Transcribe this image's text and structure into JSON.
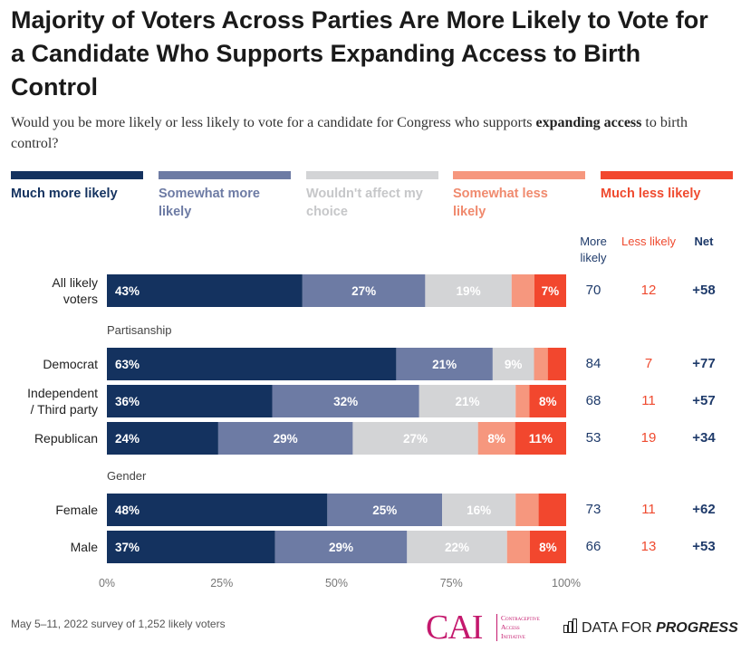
{
  "header": {
    "title": "Majority of Voters Across Parties Are More Likely to Vote for a Candidate Who Supports Expanding Access to Birth Control",
    "subtitle_pre": "Would you be more likely or less likely to vote for a candidate for Congress who supports ",
    "subtitle_bold": "expanding access",
    "subtitle_post": " to birth control?"
  },
  "colors": {
    "much_more": "#14325f",
    "somewhat_more": "#6d7ba4",
    "no_effect": "#d3d4d6",
    "somewhat_less": "#f6977e",
    "much_less": "#f2472e",
    "navy_text": "#1e3a6a",
    "red_text": "#ef4a2f"
  },
  "legend": [
    {
      "label": "Much more likely",
      "color": "#14325f",
      "text_color": "#14325f"
    },
    {
      "label": "Somewhat more likely",
      "color": "#6d7ba4",
      "text_color": "#6d7ba4"
    },
    {
      "label": "Wouldn't affect my choice",
      "color": "#d3d4d6",
      "text_color": "#c6c7c9"
    },
    {
      "label": "Somewhat less likely",
      "color": "#f6977e",
      "text_color": "#f08a6e"
    },
    {
      "label": "Much less likely",
      "color": "#f2472e",
      "text_color": "#ef4a2f"
    }
  ],
  "columns": {
    "more": "More likely",
    "less": "Less likely",
    "net": "Net"
  },
  "groups": {
    "partisanship": "Partisanship",
    "gender": "Gender"
  },
  "chart_data": {
    "type": "bar",
    "orientation": "horizontal",
    "stacked": true,
    "title": "Majority of Voters Across Parties Are More Likely to Vote for a Candidate Who Supports Expanding Access to Birth Control",
    "categories": [
      "All likely voters",
      "Democrat",
      "Independent / Third party",
      "Republican",
      "Female",
      "Male"
    ],
    "series": [
      {
        "name": "Much more likely",
        "values": [
          43,
          63,
          36,
          24,
          48,
          37
        ]
      },
      {
        "name": "Somewhat more likely",
        "values": [
          27,
          21,
          32,
          29,
          25,
          29
        ]
      },
      {
        "name": "Wouldn't affect my choice",
        "values": [
          19,
          9,
          21,
          27,
          16,
          22
        ]
      },
      {
        "name": "Somewhat less likely",
        "values": [
          5,
          3,
          3,
          8,
          5,
          5
        ]
      },
      {
        "name": "Much less likely",
        "values": [
          7,
          4,
          8,
          11,
          6,
          8
        ]
      }
    ],
    "labels": [
      [
        "43%",
        "27%",
        "19%",
        "",
        "7%"
      ],
      [
        "63%",
        "21%",
        "9%",
        "",
        ""
      ],
      [
        "36%",
        "32%",
        "21%",
        "",
        "8%"
      ],
      [
        "24%",
        "29%",
        "27%",
        "8%",
        "11%"
      ],
      [
        "48%",
        "25%",
        "16%",
        "",
        ""
      ],
      [
        "37%",
        "29%",
        "22%",
        "",
        "8%"
      ]
    ],
    "more_likely": [
      70,
      84,
      68,
      53,
      73,
      66
    ],
    "less_likely": [
      12,
      7,
      11,
      19,
      11,
      13
    ],
    "net": [
      "+58",
      "+77",
      "+57",
      "+34",
      "+62",
      "+53"
    ],
    "xlim": [
      0,
      100
    ],
    "xticks": [
      "0%",
      "25%",
      "50%",
      "75%",
      "100%"
    ]
  },
  "row_labels": [
    [
      "All likely",
      "voters"
    ],
    [
      "Democrat"
    ],
    [
      "Independent",
      "/ Third party"
    ],
    [
      "Republican"
    ],
    [
      "Female"
    ],
    [
      "Male"
    ]
  ],
  "footer": {
    "note": "May 5–11, 2022 survey of 1,252 likely voters",
    "cai_logo": "CAI",
    "cai_line1": "Contraceptive",
    "cai_line2": "Access",
    "cai_line3": "Initiative",
    "dfp_text": "DATA FOR ",
    "dfp_bold": "PROGRESS"
  }
}
